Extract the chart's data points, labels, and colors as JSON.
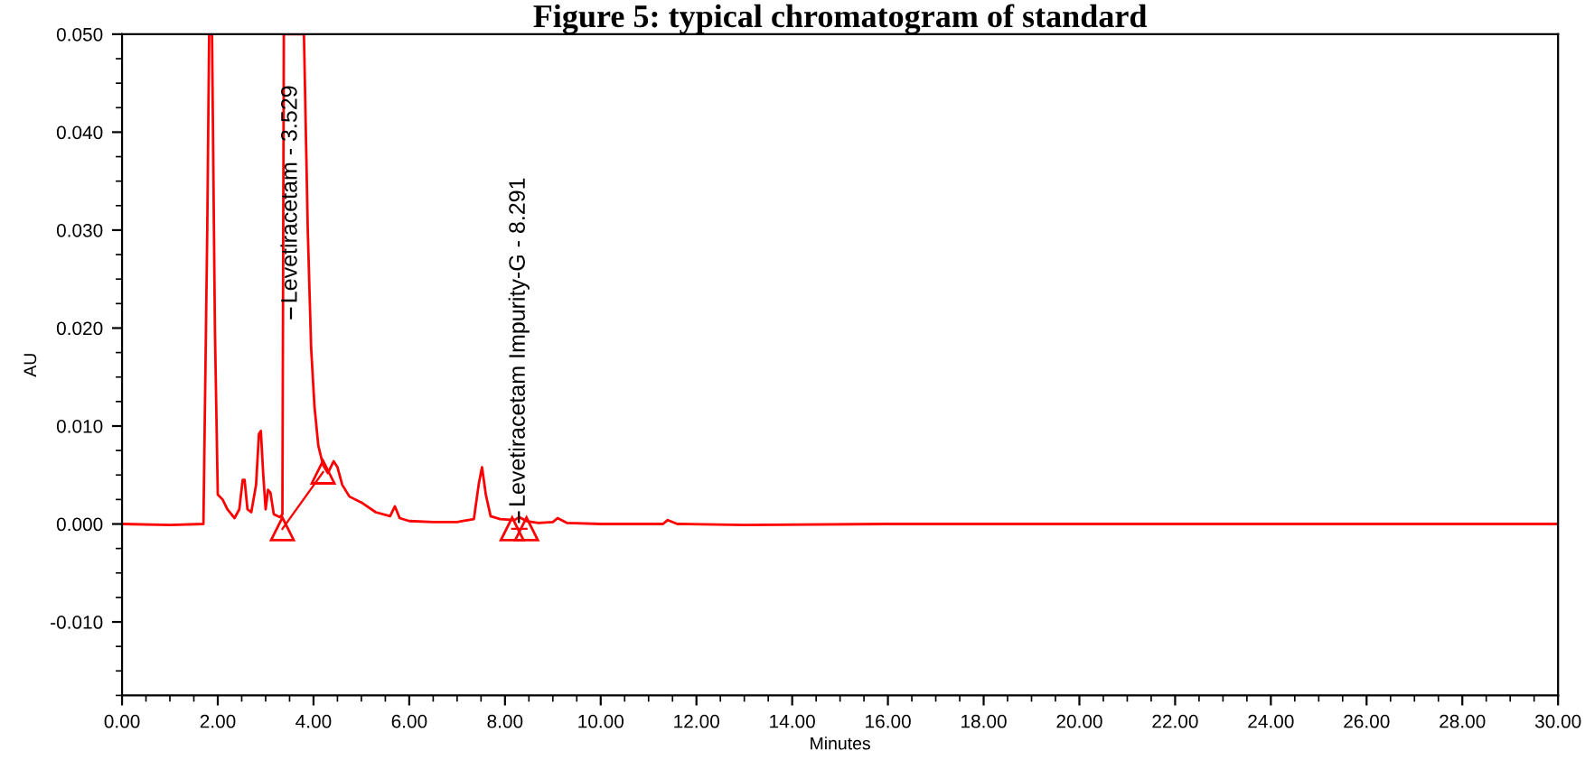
{
  "chart_data": {
    "type": "line",
    "title": "Figure 5: typical chromatogram of standard",
    "xlabel": "Minutes",
    "ylabel": "AU",
    "series": [
      {
        "color": "#ff0000",
        "x": [
          0,
          1.0,
          1.7,
          1.78,
          1.82,
          1.88,
          1.94,
          2.0,
          2.1,
          2.2,
          2.35,
          2.45,
          2.52,
          2.56,
          2.62,
          2.7,
          2.8,
          2.86,
          2.9,
          2.95,
          3.0,
          3.05,
          3.1,
          3.17,
          3.3,
          3.35,
          3.38,
          3.45,
          3.55,
          3.7,
          3.8,
          3.88,
          3.95,
          4.02,
          4.1,
          4.2,
          4.3,
          4.42,
          4.5,
          4.6,
          4.75,
          5.0,
          5.3,
          5.6,
          5.7,
          5.8,
          6.0,
          6.5,
          7.0,
          7.35,
          7.45,
          7.52,
          7.6,
          7.7,
          7.9,
          8.2,
          8.3,
          8.45,
          8.7,
          9.0,
          9.1,
          9.3,
          10.0,
          11.3,
          11.4,
          11.6,
          13.0,
          16.0,
          20.0,
          25.0,
          30.0
        ],
        "values": [
          0.0,
          -0.0001,
          0.0,
          0.03,
          0.05,
          0.05,
          0.02,
          0.003,
          0.0025,
          0.0015,
          0.0006,
          0.0015,
          0.0045,
          0.0045,
          0.0015,
          0.0012,
          0.004,
          0.0092,
          0.0095,
          0.005,
          0.0015,
          0.0035,
          0.0032,
          0.001,
          0.0007,
          0.001,
          0.05,
          0.05,
          0.05,
          0.05,
          0.05,
          0.03,
          0.018,
          0.012,
          0.008,
          0.006,
          0.0052,
          0.0064,
          0.0058,
          0.004,
          0.0028,
          0.0022,
          0.0012,
          0.0008,
          0.0018,
          0.0006,
          0.0003,
          0.0002,
          0.0002,
          0.0005,
          0.004,
          0.0058,
          0.003,
          0.0008,
          0.0005,
          0.0004,
          0.0007,
          0.0003,
          0.0001,
          0.0002,
          0.0006,
          0.0001,
          0.0,
          0.0,
          0.0004,
          0.0,
          -0.0001,
          0.0,
          0.0,
          0.0,
          0.0
        ]
      },
      {
        "color": "#ff0000",
        "marker": "triangle",
        "x": [
          3.35,
          4.2,
          6.0,
          8.15,
          8.45
        ],
        "values": [
          -0.0005,
          0.0053,
          null,
          -0.0005,
          -0.0005
        ]
      }
    ],
    "xlim": [
      0,
      30
    ],
    "ylim": [
      -0.0175,
      0.05
    ],
    "xticks": [
      {
        "value": 0,
        "label": "0.00"
      },
      {
        "value": 2,
        "label": "2.00"
      },
      {
        "value": 4,
        "label": "4.00"
      },
      {
        "value": 6,
        "label": "6.00"
      },
      {
        "value": 8,
        "label": "8.00"
      },
      {
        "value": 10,
        "label": "10.00"
      },
      {
        "value": 12,
        "label": "12.00"
      },
      {
        "value": 14,
        "label": "14.00"
      },
      {
        "value": 16,
        "label": "16.00"
      },
      {
        "value": 18,
        "label": "18.00"
      },
      {
        "value": 20,
        "label": "20.00"
      },
      {
        "value": 22,
        "label": "22.00"
      },
      {
        "value": 24,
        "label": "24.00"
      },
      {
        "value": 26,
        "label": "26.00"
      },
      {
        "value": 28,
        "label": "28.00"
      },
      {
        "value": 30,
        "label": "30.00"
      }
    ],
    "yticks": [
      {
        "value": -0.01,
        "label": "-0.010"
      },
      {
        "value": 0,
        "label": "0.000"
      },
      {
        "value": 0.01,
        "label": "0.010"
      },
      {
        "value": 0.02,
        "label": "0.020"
      },
      {
        "value": 0.03,
        "label": "0.030"
      },
      {
        "value": 0.04,
        "label": "0.040"
      },
      {
        "value": 0.05,
        "label": "0.050"
      }
    ],
    "annotations": [
      {
        "text": "Levetiracetam - 3.529",
        "x": 3.529,
        "y": 0.022
      },
      {
        "text": "Levetiracetam Impurity-G - 8.291",
        "x": 8.291,
        "y": 0.0012
      }
    ],
    "grid": false,
    "legend": false
  }
}
